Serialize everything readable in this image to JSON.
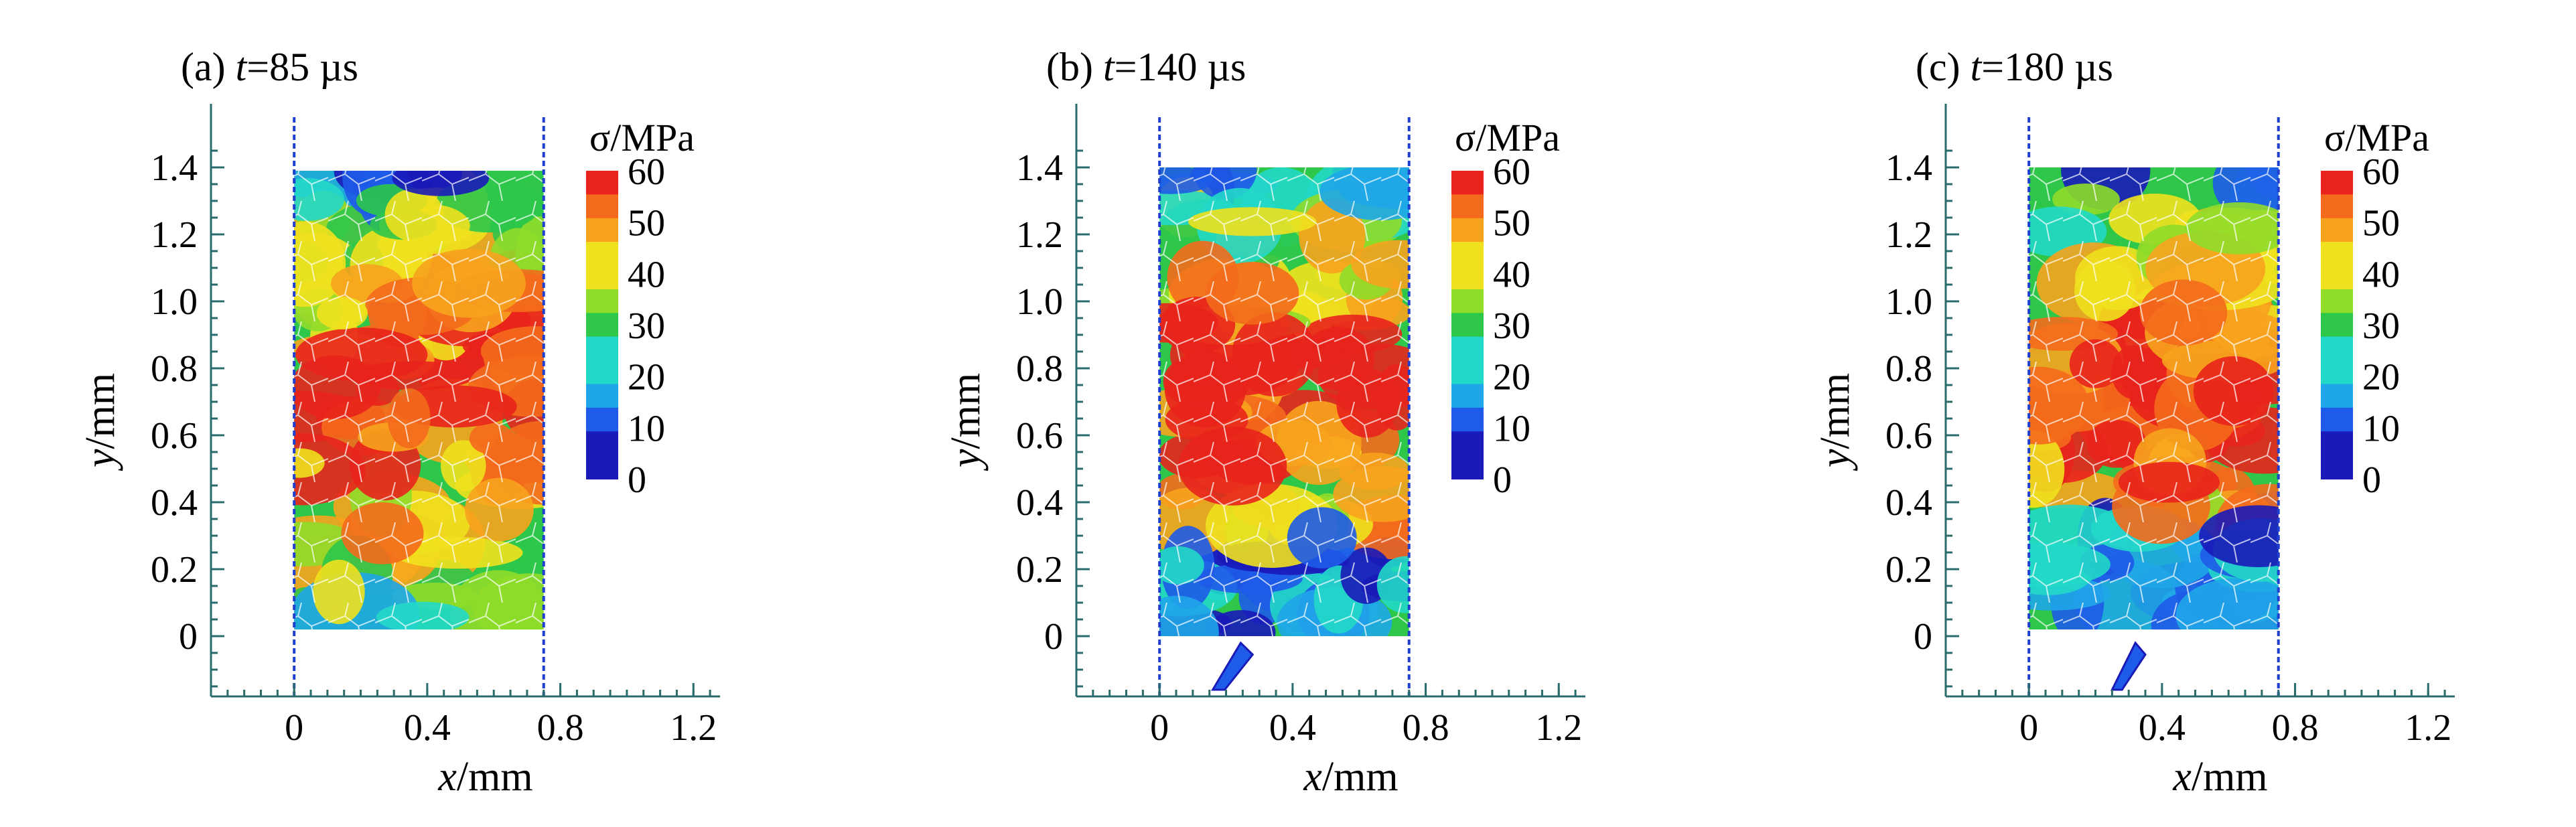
{
  "chart_data": [
    {
      "type": "heatmap",
      "panel_label": "(a) ",
      "time_var": "t",
      "time_value": "=85 µs",
      "xlabel_var": "x",
      "xlabel_unit": "/mm",
      "ylabel_var": "y",
      "ylabel_unit": "/mm",
      "xlim": [
        -0.25,
        1.28
      ],
      "ylim": [
        -0.18,
        1.55
      ],
      "xticks": [
        "0",
        "0.4",
        "0.8",
        "1.2"
      ],
      "xtick_values": [
        0,
        0.4,
        0.8,
        1.2
      ],
      "yticks": [
        "0",
        "0.2",
        "0.4",
        "0.6",
        "0.8",
        "1.0",
        "1.2",
        "1.4"
      ],
      "ytick_values": [
        0,
        0.2,
        0.4,
        0.6,
        0.8,
        1.0,
        1.2,
        1.4
      ],
      "boundaries_x": [
        0,
        0.75
      ],
      "specimen": {
        "x": [
          0,
          0.75
        ],
        "y": [
          0.02,
          1.39
        ]
      },
      "debris": [],
      "colorbar": {
        "title": "σ/MPa",
        "labels": [
          "60",
          "50",
          "40",
          "30",
          "20",
          "10",
          "0"
        ],
        "range": [
          0,
          60
        ]
      }
    },
    {
      "type": "heatmap",
      "panel_label": "(b) ",
      "time_var": "t",
      "time_value": "=140 µs",
      "xlabel_var": "x",
      "xlabel_unit": "/mm",
      "ylabel_var": "y",
      "ylabel_unit": "/mm",
      "xlim": [
        -0.25,
        1.28
      ],
      "ylim": [
        -0.18,
        1.55
      ],
      "xticks": [
        "0",
        "0.4",
        "0.8",
        "1.2"
      ],
      "xtick_values": [
        0,
        0.4,
        0.8,
        1.2
      ],
      "yticks": [
        "0",
        "0.2",
        "0.4",
        "0.6",
        "0.8",
        "1.0",
        "1.2",
        "1.4"
      ],
      "ytick_values": [
        0,
        0.2,
        0.4,
        0.6,
        0.8,
        1.0,
        1.2,
        1.4
      ],
      "boundaries_x": [
        0,
        0.75
      ],
      "specimen": {
        "x": [
          0,
          0.75
        ],
        "y": [
          0.0,
          1.4
        ]
      },
      "debris": [
        {
          "x": 0.16,
          "y": -0.16,
          "w": 0.12,
          "h": 0.14
        }
      ],
      "colorbar": {
        "title": "σ/MPa",
        "labels": [
          "60",
          "50",
          "40",
          "30",
          "20",
          "10",
          "0"
        ],
        "range": [
          0,
          60
        ]
      }
    },
    {
      "type": "heatmap",
      "panel_label": "(c) ",
      "time_var": "t",
      "time_value": "=180 µs",
      "xlabel_var": "x",
      "xlabel_unit": "/mm",
      "ylabel_var": "y",
      "ylabel_unit": "/mm",
      "xlim": [
        -0.25,
        1.28
      ],
      "ylim": [
        -0.18,
        1.55
      ],
      "xticks": [
        "0",
        "0.4",
        "0.8",
        "1.2"
      ],
      "xtick_values": [
        0,
        0.4,
        0.8,
        1.2
      ],
      "yticks": [
        "0",
        "0.2",
        "0.4",
        "0.6",
        "0.8",
        "1.0",
        "1.2",
        "1.4"
      ],
      "ytick_values": [
        0,
        0.2,
        0.4,
        0.6,
        0.8,
        1.0,
        1.2,
        1.4
      ],
      "boundaries_x": [
        0,
        0.75
      ],
      "specimen": {
        "x": [
          0,
          0.75
        ],
        "y": [
          0.02,
          1.4
        ]
      },
      "debris": [
        {
          "x": 0.25,
          "y": -0.16,
          "w": 0.1,
          "h": 0.14
        }
      ],
      "colorbar": {
        "title": "σ/MPa",
        "labels": [
          "60",
          "50",
          "40",
          "30",
          "20",
          "10",
          "0"
        ],
        "range": [
          0,
          60
        ]
      }
    }
  ],
  "colors": {
    "scale": [
      "#1a1ab8",
      "#1e5be8",
      "#1fa6e8",
      "#22d8c8",
      "#2ec74a",
      "#8fdc2a",
      "#f0e11e",
      "#f7a31e",
      "#f46a1c",
      "#e8241c"
    ],
    "axis": "#2a6b6b",
    "boundary": "#1f3fd0",
    "crack": "#ffffff"
  }
}
